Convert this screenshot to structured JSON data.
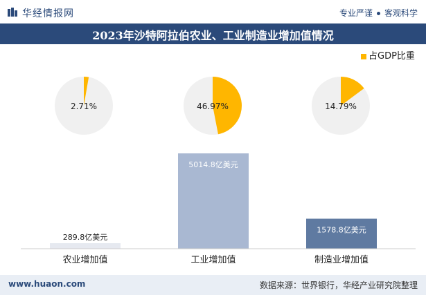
{
  "header": {
    "brand": "华经情报网",
    "slogan_left": "专业严谨",
    "slogan_right": "客观科学"
  },
  "title": "2023年沙特阿拉伯农业、工业制造业增加值情况",
  "footer": {
    "url": "www.huaon.com",
    "source": "数据来源：世界银行，华经产业研究院整理"
  },
  "colors": {
    "brand": "#2b4a7a",
    "pie_share": "#ffb600",
    "pie_rest": "#f0f0f0",
    "bar_agri": "#e6e9f0",
    "bar_industry": "#a9b8d2",
    "bar_manufacturing": "#5f7aa1"
  },
  "chart_data": [
    {
      "type": "pie",
      "legend": [
        "占GDP比重"
      ],
      "legend_position": "top-right",
      "series": [
        {
          "category": "农业增加值",
          "value": 2.71,
          "label": "2.71%"
        },
        {
          "category": "工业增加值",
          "value": 46.97,
          "label": "46.97%"
        },
        {
          "category": "制造业增加值",
          "value": 14.79,
          "label": "14.79%"
        }
      ]
    },
    {
      "type": "bar",
      "categories": [
        "农业增加值",
        "工业增加值",
        "制造业增加值"
      ],
      "values": [
        289.8,
        5014.8,
        1578.8
      ],
      "labels": [
        "289.8亿美元",
        "5014.8亿美元",
        "1578.8亿美元"
      ],
      "ylim": [
        0,
        5500
      ],
      "grid": false
    }
  ]
}
